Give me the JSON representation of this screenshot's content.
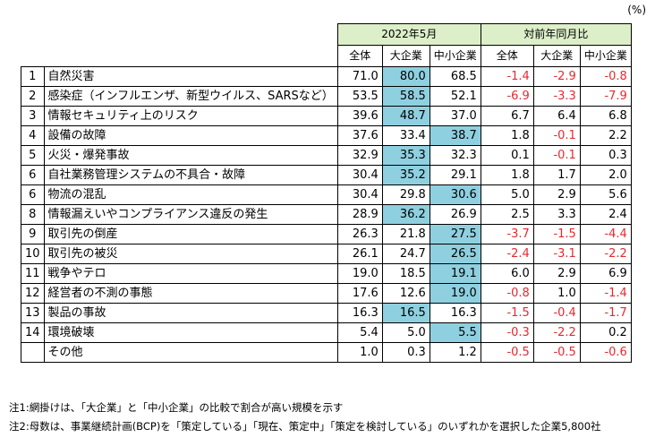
{
  "unit_label": "(%)",
  "header": {
    "group_2022": "2022年5月",
    "group_yoy": "対前年同月比",
    "col_all": "全体",
    "col_large": "大企業",
    "col_sme": "中小企業"
  },
  "rows": [
    {
      "no": "1",
      "item": "自然災害",
      "all": "71.0",
      "large": "80.0",
      "sme": "68.5",
      "d_all": "-1.4",
      "d_large": "-2.9",
      "d_sme": "-0.8",
      "hl": "large"
    },
    {
      "no": "2",
      "item": "感染症（インフルエンザ、新型ウイルス、SARSなど）",
      "all": "53.5",
      "large": "58.5",
      "sme": "52.1",
      "d_all": "-6.9",
      "d_large": "-3.3",
      "d_sme": "-7.9",
      "hl": "large"
    },
    {
      "no": "3",
      "item": "情報セキュリティ上のリスク",
      "all": "39.6",
      "large": "48.7",
      "sme": "37.0",
      "d_all": "6.7",
      "d_large": "6.4",
      "d_sme": "6.8",
      "hl": "large"
    },
    {
      "no": "4",
      "item": "設備の故障",
      "all": "37.6",
      "large": "33.4",
      "sme": "38.7",
      "d_all": "1.8",
      "d_large": "-0.1",
      "d_sme": "2.2",
      "hl": "sme"
    },
    {
      "no": "5",
      "item": "火災・爆発事故",
      "all": "32.9",
      "large": "35.3",
      "sme": "32.3",
      "d_all": "0.1",
      "d_large": "-0.1",
      "d_sme": "0.3",
      "hl": "large"
    },
    {
      "no": "6",
      "item": "自社業務管理システムの不具合・故障",
      "all": "30.4",
      "large": "35.2",
      "sme": "29.1",
      "d_all": "1.8",
      "d_large": "1.7",
      "d_sme": "2.0",
      "hl": "large"
    },
    {
      "no": "6",
      "item": "物流の混乱",
      "all": "30.4",
      "large": "29.8",
      "sme": "30.6",
      "d_all": "5.0",
      "d_large": "2.9",
      "d_sme": "5.6",
      "hl": "sme"
    },
    {
      "no": "8",
      "item": "情報漏えいやコンプライアンス違反の発生",
      "all": "28.9",
      "large": "36.2",
      "sme": "26.9",
      "d_all": "2.5",
      "d_large": "3.3",
      "d_sme": "2.4",
      "hl": "large"
    },
    {
      "no": "9",
      "item": "取引先の倒産",
      "all": "26.3",
      "large": "21.8",
      "sme": "27.5",
      "d_all": "-3.7",
      "d_large": "-1.5",
      "d_sme": "-4.4",
      "hl": "sme"
    },
    {
      "no": "10",
      "item": "取引先の被災",
      "all": "26.1",
      "large": "24.7",
      "sme": "26.5",
      "d_all": "-2.4",
      "d_large": "-3.1",
      "d_sme": "-2.2",
      "hl": "sme"
    },
    {
      "no": "11",
      "item": "戦争やテロ",
      "all": "19.0",
      "large": "18.5",
      "sme": "19.1",
      "d_all": "6.0",
      "d_large": "2.9",
      "d_sme": "6.9",
      "hl": "sme"
    },
    {
      "no": "12",
      "item": "経営者の不測の事態",
      "all": "17.6",
      "large": "12.6",
      "sme": "19.0",
      "d_all": "-0.8",
      "d_large": "1.0",
      "d_sme": "-1.4",
      "hl": "sme"
    },
    {
      "no": "13",
      "item": "製品の事故",
      "all": "16.3",
      "large": "16.5",
      "sme": "16.3",
      "d_all": "-1.5",
      "d_large": "-0.4",
      "d_sme": "-1.7",
      "hl": "large"
    },
    {
      "no": "14",
      "item": "環境破壊",
      "all": "5.4",
      "large": "5.0",
      "sme": "5.5",
      "d_all": "-0.3",
      "d_large": "-2.2",
      "d_sme": "0.2",
      "hl": "sme"
    },
    {
      "no": "",
      "item": "その他",
      "all": "1.0",
      "large": "0.3",
      "sme": "1.2",
      "d_all": "-0.5",
      "d_large": "-0.5",
      "d_sme": "-0.6",
      "hl": ""
    }
  ],
  "notes": [
    "注1:網掛けは、「大企業」と「中小企業」の比較で割合が高い規模を示す",
    "注2:母数は、事業継続計画(BCP)を「策定している」「現在、策定中」「策定を検討している」のいずれかを選択した企業5,800社"
  ],
  "colors": {
    "highlight": "#8fd0e0",
    "header_bg": "#dcefc8",
    "negative": "#e8282f"
  }
}
